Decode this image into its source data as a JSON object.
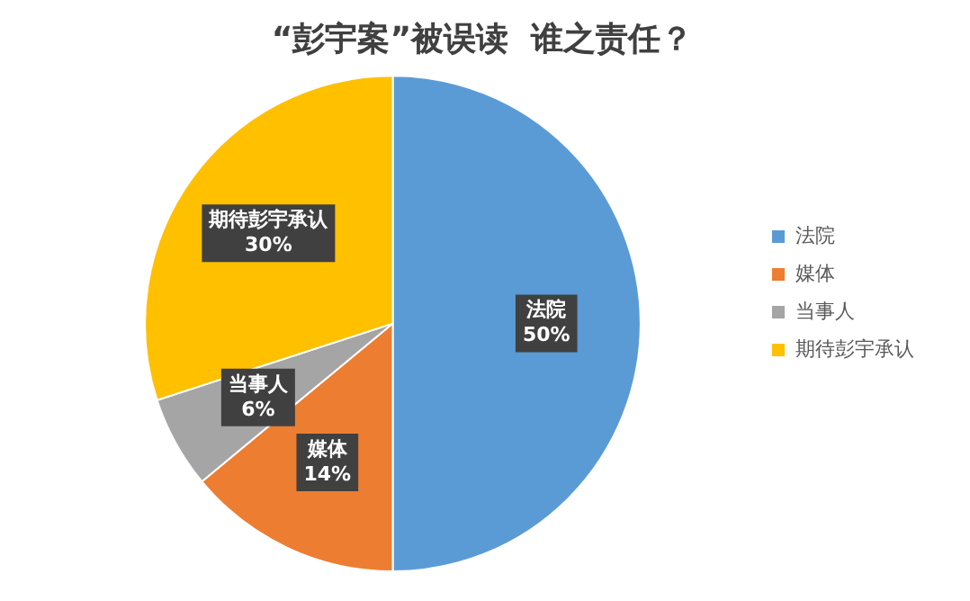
{
  "chart_data": {
    "type": "pie",
    "title": "“彭宇案”被误读  谁之责任？",
    "categories": [
      "法院",
      "媒体",
      "当事人",
      "期待彭宇承认"
    ],
    "values": [
      50,
      14,
      6,
      30
    ],
    "colors": [
      "#5b9bd5",
      "#ed7d31",
      "#a5a5a5",
      "#ffc000"
    ],
    "value_labels": [
      "50%",
      "14%",
      "6%",
      "30%"
    ],
    "legend": "right"
  }
}
